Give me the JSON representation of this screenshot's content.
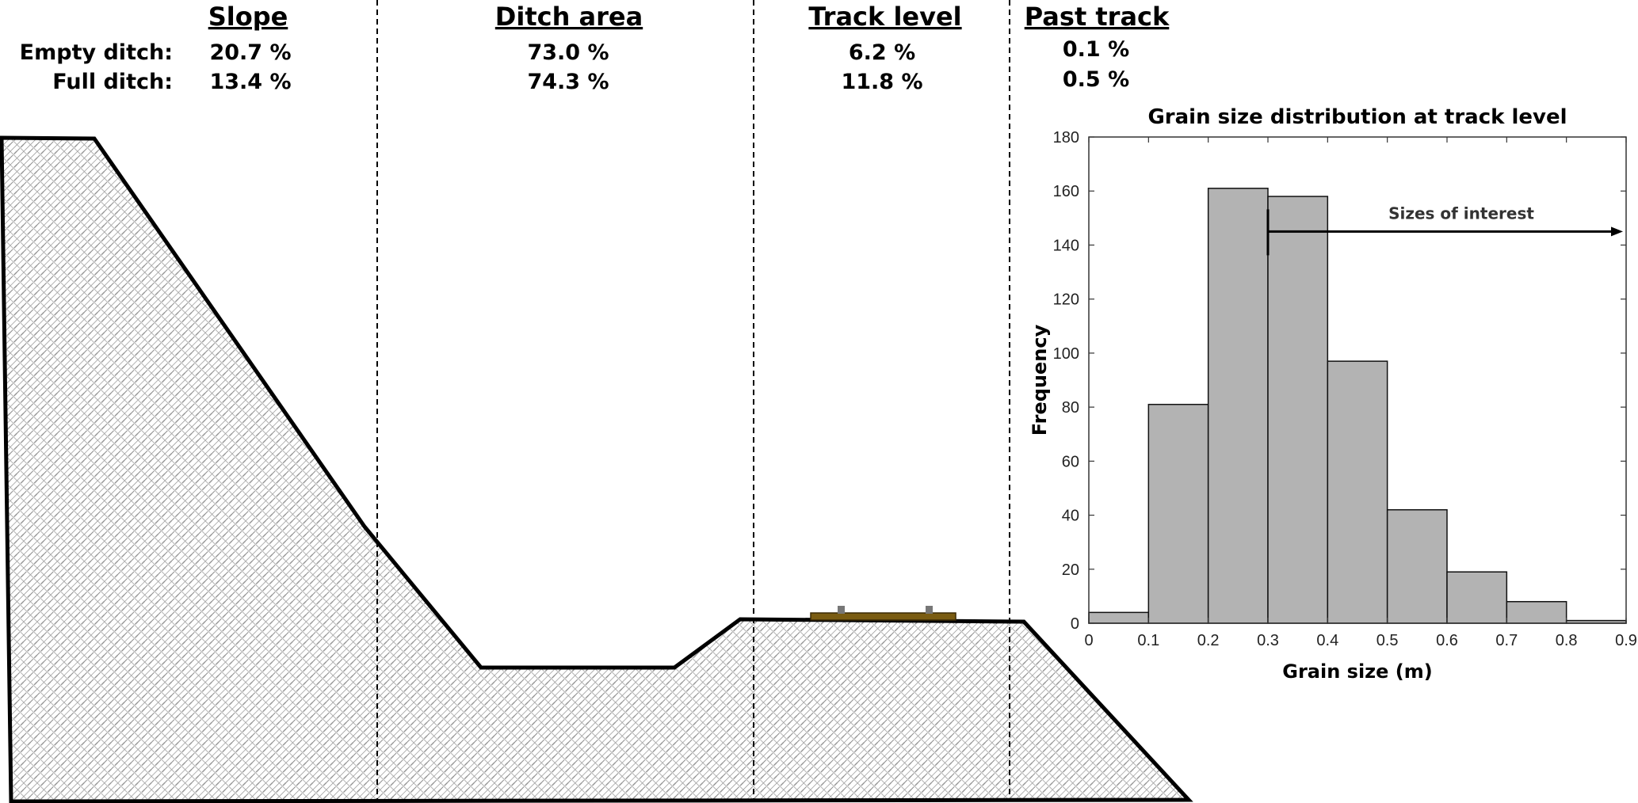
{
  "rows": {
    "empty_label": "Empty ditch:",
    "full_label": "Full ditch:"
  },
  "zones": [
    {
      "name": "Slope",
      "empty": "20.7 %",
      "full": "13.4 %"
    },
    {
      "name": "Ditch area",
      "empty": "73.0 %",
      "full": "74.3 %"
    },
    {
      "name": "Track level",
      "empty": "6.2 %",
      "full": "11.8 %"
    },
    {
      "name": "Past track",
      "empty": "0.1 %",
      "full": "0.5 %"
    }
  ],
  "colors": {
    "bar_fill": "#b3b3b3",
    "terrain_outline": "#000000",
    "terrain_hatch": "#888888",
    "rail_bed": "#7a5c12",
    "rail": "#777777"
  },
  "chart_data": {
    "type": "bar",
    "title": "Grain size distribution at track level",
    "xlabel": "Grain size (m)",
    "ylabel": "Frequency",
    "bin_edges": [
      0,
      0.1,
      0.2,
      0.3,
      0.4,
      0.5,
      0.6,
      0.7,
      0.8,
      0.9
    ],
    "values": [
      4,
      81,
      161,
      158,
      97,
      42,
      19,
      8,
      1
    ],
    "xlim": [
      0,
      0.9
    ],
    "ylim": [
      0,
      180
    ],
    "xticks": [
      0,
      0.1,
      0.2,
      0.3,
      0.4,
      0.5,
      0.6,
      0.7,
      0.8,
      0.9
    ],
    "yticks": [
      0,
      20,
      40,
      60,
      80,
      100,
      120,
      140,
      160,
      180
    ],
    "annotation": {
      "text": "Sizes of interest",
      "from_x": 0.3,
      "to_x": 0.9,
      "y": 145
    },
    "grid": false
  }
}
